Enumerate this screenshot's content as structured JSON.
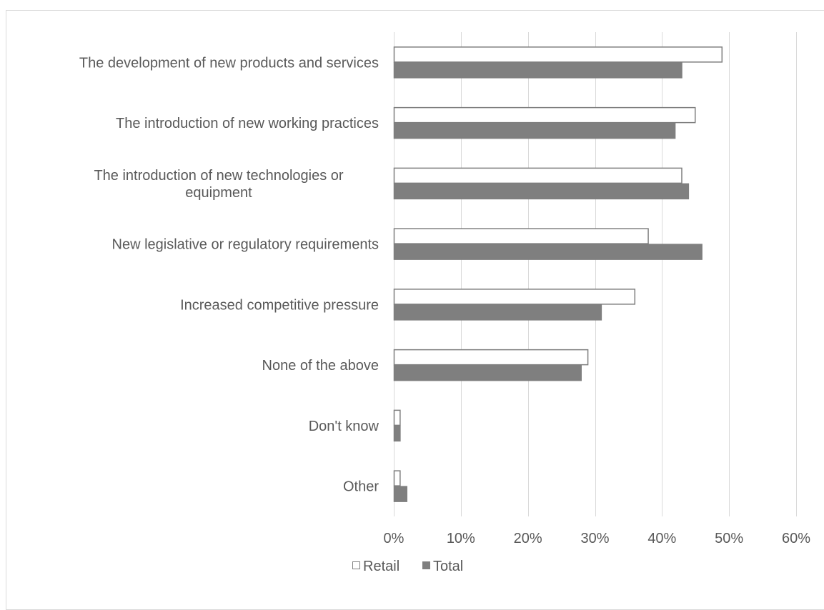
{
  "chart_data": {
    "type": "bar",
    "orientation": "horizontal",
    "categories": [
      "The development of new products and services",
      "The introduction of new working practices",
      "The introduction of new technologies or equipment",
      "New legislative or regulatory requirements",
      "Increased competitive pressure",
      "None of the above",
      "Don't know",
      "Other"
    ],
    "category_label_lines": [
      [
        "The development of new products and services"
      ],
      [
        "The introduction of new working practices"
      ],
      [
        "The introduction of new technologies or",
        "equipment"
      ],
      [
        "New legislative or regulatory requirements"
      ],
      [
        "Increased competitive pressure"
      ],
      [
        "None of the above"
      ],
      [
        "Don't know"
      ],
      [
        "Other"
      ]
    ],
    "series": [
      {
        "name": "Retail",
        "values": [
          0.49,
          0.45,
          0.43,
          0.38,
          0.36,
          0.29,
          0.01,
          0.01
        ],
        "fill": "#ffffff",
        "stroke": "#7f7f7f"
      },
      {
        "name": "Total",
        "values": [
          0.43,
          0.42,
          0.44,
          0.46,
          0.31,
          0.28,
          0.01,
          0.02
        ],
        "fill": "#7f7f7f",
        "stroke": "#7f7f7f"
      }
    ],
    "x_ticks": [
      0,
      0.1,
      0.2,
      0.3,
      0.4,
      0.5,
      0.6
    ],
    "x_tick_labels": [
      "0%",
      "10%",
      "20%",
      "30%",
      "40%",
      "50%",
      "60%"
    ],
    "xlim": [
      0,
      0.6
    ],
    "grid": true,
    "gridline_color": "#d9d9d9",
    "legend_position": "bottom",
    "title": "",
    "xlabel": "",
    "ylabel": ""
  }
}
